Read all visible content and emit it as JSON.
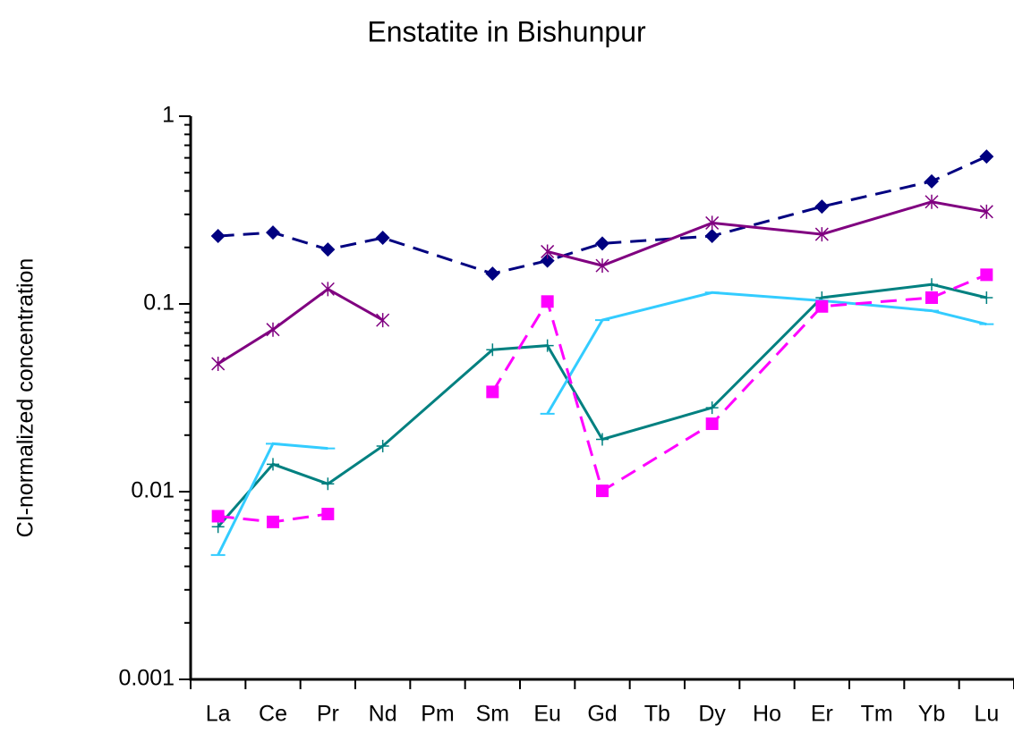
{
  "chart_data": {
    "type": "line",
    "title": "Enstatite in Bishunpur",
    "y_label": "CI-normalized concentration",
    "categories": [
      "La",
      "Ce",
      "Pr",
      "Nd",
      "Pm",
      "Sm",
      "Eu",
      "Gd",
      "Tb",
      "Dy",
      "Ho",
      "Er",
      "Tm",
      "Yb",
      "Lu"
    ],
    "ylim": [
      0.001,
      1
    ],
    "yticks": [
      0.001,
      0.01,
      0.1,
      1
    ],
    "log_scale": true,
    "connect_gaps": true,
    "series": [
      {
        "color": "#000080",
        "marker": "diamond",
        "dashed": true,
        "values": [
          0.23,
          0.24,
          0.195,
          0.225,
          null,
          0.145,
          0.17,
          0.21,
          null,
          0.23,
          null,
          0.33,
          null,
          0.45,
          0.61
        ]
      },
      {
        "color": "#800080",
        "marker": "asterisk",
        "dashed": false,
        "values": [
          0.048,
          0.073,
          0.12,
          0.082,
          null,
          null,
          null,
          null,
          null,
          null,
          null,
          null,
          null,
          null,
          null
        ]
      },
      {
        "color": "#800080",
        "marker": "asterisk",
        "dashed": false,
        "values": [
          null,
          null,
          null,
          null,
          null,
          null,
          0.19,
          0.16,
          null,
          0.27,
          null,
          0.235,
          null,
          0.35,
          0.31
        ]
      },
      {
        "color": "#008080",
        "marker": "plus",
        "dashed": false,
        "values": [
          0.0065,
          0.014,
          0.011,
          0.0175,
          null,
          0.057,
          0.06,
          0.019,
          null,
          0.028,
          null,
          0.108,
          null,
          0.127,
          0.108
        ]
      },
      {
        "color": "#33ccff",
        "marker": "dash",
        "dashed": false,
        "values": [
          0.0046,
          0.018,
          0.017,
          null,
          null,
          null,
          null,
          null,
          null,
          null,
          null,
          null,
          null,
          null,
          null
        ]
      },
      {
        "color": "#33ccff",
        "marker": "dash",
        "dashed": false,
        "values": [
          null,
          null,
          null,
          null,
          null,
          null,
          0.026,
          0.082,
          null,
          0.115,
          null,
          0.104,
          null,
          0.092,
          0.078
        ]
      },
      {
        "color": "#ff00ff",
        "marker": "square",
        "dashed": true,
        "values": [
          0.0074,
          0.0069,
          0.0076,
          null,
          null,
          null,
          null,
          null,
          null,
          null,
          null,
          null,
          null,
          null,
          null
        ]
      },
      {
        "color": "#ff00ff",
        "marker": "square",
        "dashed": true,
        "values": [
          null,
          null,
          null,
          null,
          null,
          0.034,
          0.103,
          0.0101,
          null,
          0.023,
          null,
          0.097,
          null,
          0.108,
          0.143
        ]
      }
    ]
  }
}
